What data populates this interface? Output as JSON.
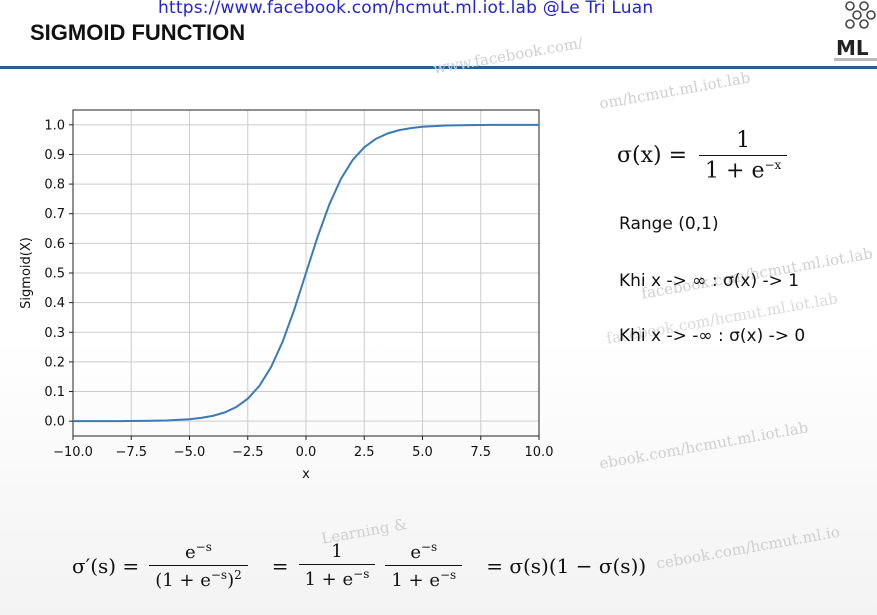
{
  "slide": {
    "source_link": "https://www.facebook.com/hcmut.ml.iot.lab @Le Tri Luan",
    "title": "SIGMOID FUNCTION",
    "logo_text": "ML",
    "watermarks": [
      "www.facebook.com/",
      "om/hcmut.ml.iot.lab",
      "facebook.com/hcmut.ml.iot.lab",
      "ebook.com/hcmut.ml.iot.lab",
      "facebook.com/hcmut.ml.iot.lab",
      "cebook.com/hcmut.ml.io",
      "Learning &"
    ]
  },
  "formula": {
    "lhs": "σ(x) =",
    "numerator": "1",
    "denominator": "1 + e",
    "denominator_exp": "−x"
  },
  "info": {
    "range": "Range (0,1)",
    "pos_inf": "Khi x -> ∞  : σ(x) -> 1",
    "neg_inf": "Khi x -> -∞ : σ(x) -> 0"
  },
  "derivative": {
    "lhs": "σ′(s) =",
    "f1_num": "e",
    "f1_num_exp": "−s",
    "f1_den": "(1 + e",
    "f1_den_exp": "−s",
    "f1_den_tail": ")",
    "f1_den_pow": "2",
    "eq2": "=",
    "f2_num": "1",
    "f2_den": "1 + e",
    "f2_den_exp": "−s",
    "f3_num": "e",
    "f3_num_exp": "−s",
    "f3_den": "1 + e",
    "f3_den_exp": "−s",
    "rhs": "= σ(s)(1 − σ(s))"
  },
  "chart_data": {
    "type": "line",
    "xlabel": "x",
    "ylabel": "Sigmoid(X)",
    "xlim": [
      -10,
      10
    ],
    "ylim": [
      -0.05,
      1.05
    ],
    "xticks": [
      -10.0,
      -7.5,
      -5.0,
      -2.5,
      0.0,
      2.5,
      5.0,
      7.5,
      10.0
    ],
    "xtick_labels": [
      "−10.0",
      "−7.5",
      "−5.0",
      "−2.5",
      "0.0",
      "2.5",
      "5.0",
      "7.5",
      "10.0"
    ],
    "yticks": [
      0.0,
      0.1,
      0.2,
      0.3,
      0.4,
      0.5,
      0.6,
      0.7,
      0.8,
      0.9,
      1.0
    ],
    "ytick_labels": [
      "0.0",
      "0.1",
      "0.2",
      "0.3",
      "0.4",
      "0.5",
      "0.6",
      "0.7",
      "0.8",
      "0.9",
      "1.0"
    ],
    "grid": true,
    "line_color": "#3a7ab8",
    "series": [
      {
        "x": [
          -10,
          -9,
          -8,
          -7,
          -6,
          -5,
          -4.5,
          -4,
          -3.5,
          -3,
          -2.5,
          -2,
          -1.5,
          -1,
          -0.5,
          0,
          0.5,
          1,
          1.5,
          2,
          2.5,
          3,
          3.5,
          4,
          4.5,
          5,
          6,
          7,
          8,
          9,
          10
        ],
        "y": [
          0.0,
          0.0001,
          0.0003,
          0.0009,
          0.0025,
          0.0067,
          0.011,
          0.018,
          0.0293,
          0.0474,
          0.0759,
          0.1192,
          0.1824,
          0.2689,
          0.3775,
          0.5,
          0.6225,
          0.7311,
          0.8176,
          0.8808,
          0.9241,
          0.9526,
          0.9707,
          0.982,
          0.989,
          0.9933,
          0.9975,
          0.9991,
          0.9997,
          0.9999,
          1.0
        ]
      }
    ]
  }
}
